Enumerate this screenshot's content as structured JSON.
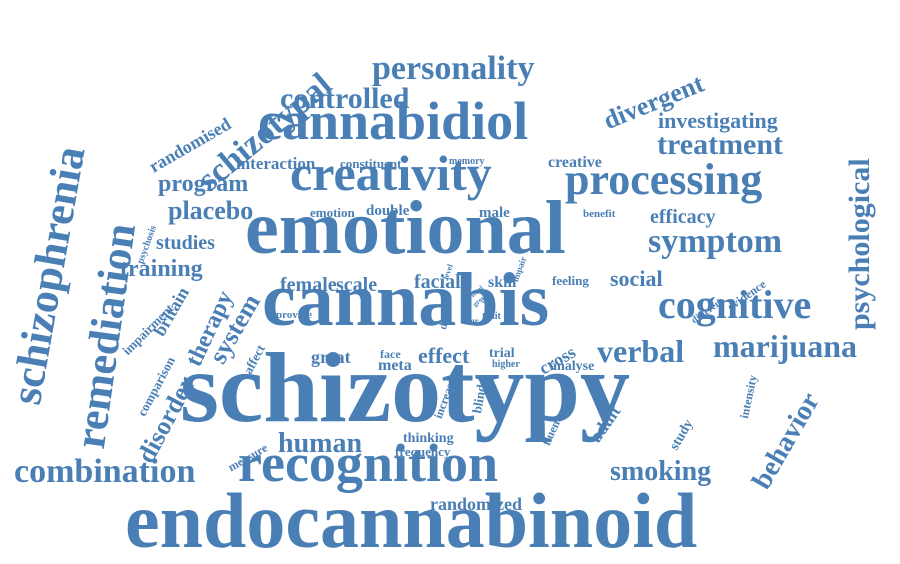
{
  "color": "#4a7fb5",
  "words": [
    {
      "text": "endocannabinoid",
      "id": "endocannabinoid"
    },
    {
      "text": "schizotypy",
      "id": "schizotypy"
    },
    {
      "text": "cannabis",
      "id": "cannabis"
    },
    {
      "text": "emotional",
      "id": "emotional"
    },
    {
      "text": "recognition",
      "id": "recognition"
    },
    {
      "text": "cannabidiol",
      "id": "cannabidiol"
    },
    {
      "text": "creativity",
      "id": "creativity"
    },
    {
      "text": "processing",
      "id": "processing"
    },
    {
      "text": "schizophrenia",
      "id": "schizophrenia"
    },
    {
      "text": "remediation",
      "id": "remediation"
    },
    {
      "text": "personality",
      "id": "personality"
    },
    {
      "text": "schizotypal",
      "id": "schizotypal"
    },
    {
      "text": "controlled",
      "id": "controlled"
    },
    {
      "text": "divergent",
      "id": "divergent"
    },
    {
      "text": "investigating",
      "id": "investigating"
    },
    {
      "text": "treatment",
      "id": "treatment"
    },
    {
      "text": "psychological",
      "id": "psychological"
    },
    {
      "text": "symptom",
      "id": "symptom"
    },
    {
      "text": "cognitive",
      "id": "cognitive"
    },
    {
      "text": "marijuana",
      "id": "marijuana"
    },
    {
      "text": "verbal",
      "id": "verbal"
    },
    {
      "text": "behavior",
      "id": "behavior"
    },
    {
      "text": "combination",
      "id": "combination"
    },
    {
      "text": "smoking",
      "id": "smoking"
    },
    {
      "text": "human",
      "id": "human"
    },
    {
      "text": "randomized",
      "id": "randomized"
    },
    {
      "text": "randomised",
      "id": "randomised"
    },
    {
      "text": "interaction",
      "id": "interaction"
    },
    {
      "text": "constituent",
      "id": "constituent"
    },
    {
      "text": "memory",
      "id": "memory"
    },
    {
      "text": "creative",
      "id": "creative"
    },
    {
      "text": "program",
      "id": "program"
    },
    {
      "text": "placebo",
      "id": "placebo"
    },
    {
      "text": "emotion",
      "id": "emotion"
    },
    {
      "text": "double",
      "id": "double"
    },
    {
      "text": "male",
      "id": "male"
    },
    {
      "text": "benefit",
      "id": "benefit"
    },
    {
      "text": "efficacy",
      "id": "efficacy"
    },
    {
      "text": "studies",
      "id": "studies"
    },
    {
      "text": "training",
      "id": "training"
    },
    {
      "text": "psychosis",
      "id": "psychosis"
    },
    {
      "text": "female",
      "id": "female"
    },
    {
      "text": "scale",
      "id": "scale"
    },
    {
      "text": "facial",
      "id": "facial"
    },
    {
      "text": "skill",
      "id": "skill"
    },
    {
      "text": "level",
      "id": "level"
    },
    {
      "text": "impair",
      "id": "impair"
    },
    {
      "text": "feeling",
      "id": "feeling"
    },
    {
      "text": "social",
      "id": "social"
    },
    {
      "text": "different",
      "id": "different"
    },
    {
      "text": "evidence",
      "id": "evidence"
    },
    {
      "text": "therapy",
      "id": "therapy"
    },
    {
      "text": "britain",
      "id": "britain"
    },
    {
      "text": "system",
      "id": "system"
    },
    {
      "text": "impairment",
      "id": "impairment"
    },
    {
      "text": "provide",
      "id": "provide"
    },
    {
      "text": "delta",
      "id": "delta"
    },
    {
      "text": "trait",
      "id": "trait"
    },
    {
      "text": "visual",
      "id": "visual"
    },
    {
      "text": "user",
      "id": "user"
    },
    {
      "text": "group",
      "id": "group"
    },
    {
      "text": "state",
      "id": "state"
    },
    {
      "text": "great",
      "id": "great"
    },
    {
      "text": "face",
      "id": "face"
    },
    {
      "text": "meta",
      "id": "meta"
    },
    {
      "text": "effect",
      "id": "effect"
    },
    {
      "text": "trial",
      "id": "trial"
    },
    {
      "text": "higher",
      "id": "higher"
    },
    {
      "text": "cross",
      "id": "cross"
    },
    {
      "text": "analyse",
      "id": "analyse"
    },
    {
      "text": "comparison",
      "id": "comparison"
    },
    {
      "text": "disorder",
      "id": "disorder"
    },
    {
      "text": "affect",
      "id": "affect"
    },
    {
      "text": "increase",
      "id": "increase"
    },
    {
      "text": "blind",
      "id": "blind"
    },
    {
      "text": "fluency",
      "id": "fluency"
    },
    {
      "text": "adult",
      "id": "adult"
    },
    {
      "text": "study",
      "id": "study"
    },
    {
      "text": "intensity",
      "id": "intensity"
    },
    {
      "text": "thinking",
      "id": "thinking"
    },
    {
      "text": "frequency",
      "id": "frequency"
    },
    {
      "text": "measure",
      "id": "measure"
    }
  ]
}
